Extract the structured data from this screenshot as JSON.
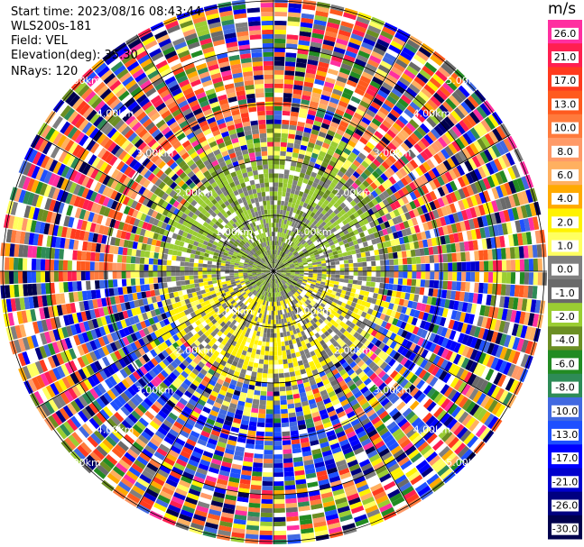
{
  "header": {
    "start_time": "Start time: 2023/08/16 08:43:44",
    "instrument": "WLS200s-181",
    "field": "Field: VEL",
    "elevation": "Elevation(deg): 35.30",
    "nrays": "NRays: 120"
  },
  "colorbar": {
    "unit": "m/s",
    "ticks": [
      "26.0",
      "21.0",
      "17.0",
      "13.0",
      "10.0",
      "8.0",
      "6.0",
      "4.0",
      "2.0",
      "1.0",
      "0.0",
      "-1.0",
      "-2.0",
      "-4.0",
      "-6.0",
      "-8.0",
      "-10.0",
      "-13.0",
      "-17.0",
      "-21.0",
      "-26.0",
      "-30.0"
    ],
    "colors": [
      "#ff2fa0",
      "#ff1f50",
      "#ff3a1e",
      "#ff5a1e",
      "#ff7a3c",
      "#ff9a68",
      "#ffb060",
      "#ffaa00",
      "#fff200",
      "#ffff60",
      "#7f7f7f",
      "#6a6a6a",
      "#9acd32",
      "#6b8e23",
      "#228b22",
      "#2e8b57",
      "#4169e1",
      "#1e50ff",
      "#0000ff",
      "#0000cd",
      "#000080",
      "#00004d"
    ]
  },
  "chart_data": {
    "type": "heatmap",
    "projection": "polar PPI",
    "field": "VEL",
    "units": "m/s",
    "nrays": 120,
    "range_rings_km": [
      {
        "label": "1.00km",
        "value": 1.0
      },
      {
        "label": "2.00km",
        "value": 2.0
      },
      {
        "label": "3.00km",
        "value": 3.0
      },
      {
        "label": "4.00km",
        "value": 4.0
      },
      {
        "label": "5.00km",
        "value": 5.0
      }
    ],
    "rings_upper": [
      "1.00km",
      "2.00km",
      "3.00km",
      "4.00km",
      "5.00km"
    ],
    "rings_lower": [
      "1.00km",
      "2.00km",
      "3.00km",
      "4.00km",
      "5.00km"
    ],
    "color_range": [
      -30.0,
      26.0
    ]
  }
}
